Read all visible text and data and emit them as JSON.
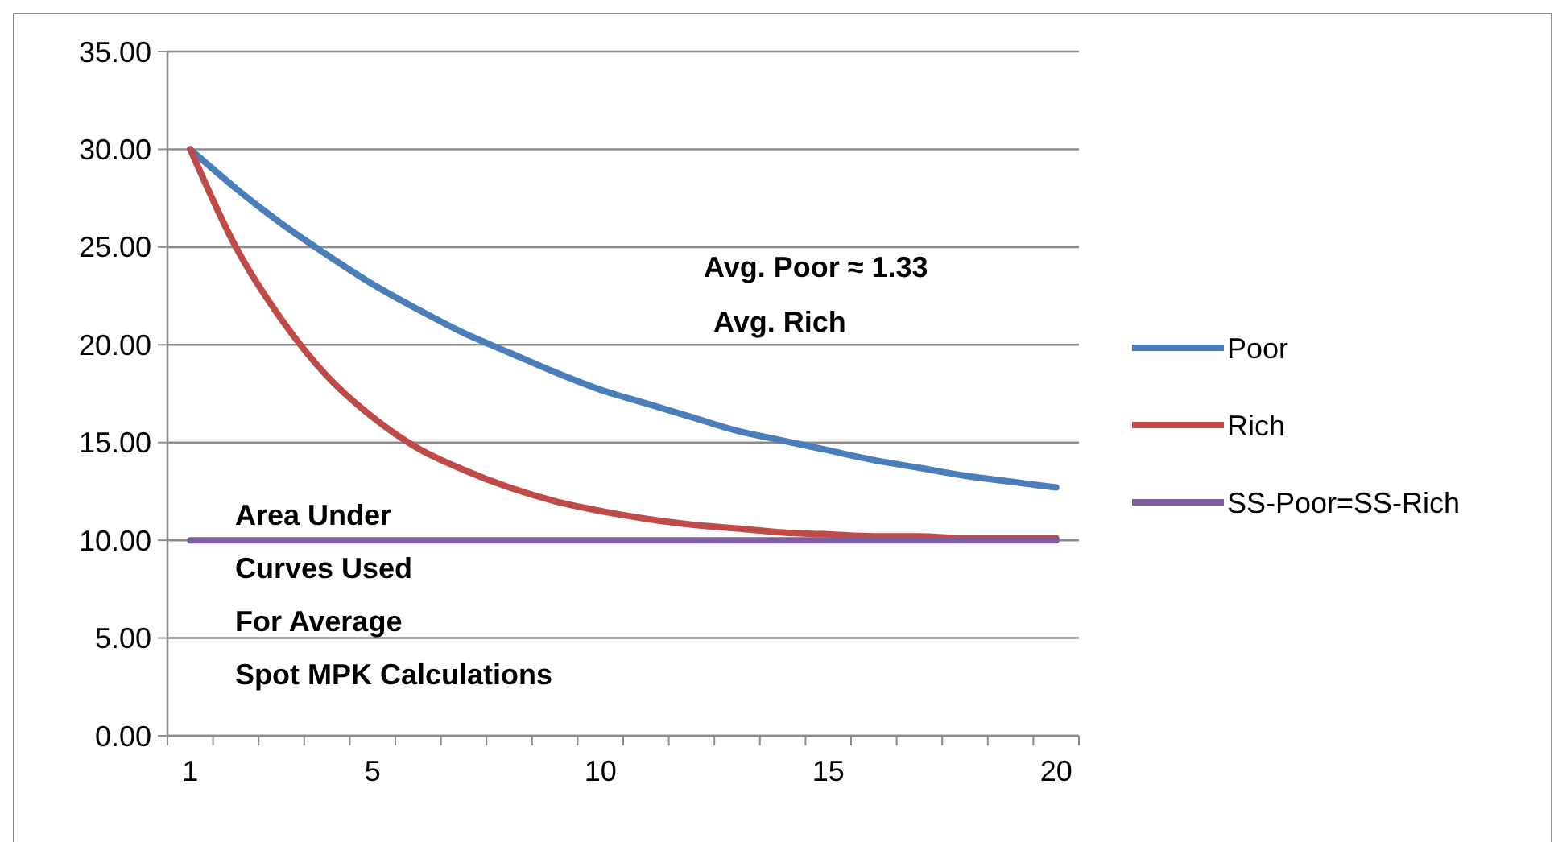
{
  "chart_data": {
    "type": "line",
    "x": [
      1,
      2,
      3,
      4,
      5,
      6,
      7,
      8,
      9,
      10,
      11,
      12,
      13,
      14,
      15,
      16,
      17,
      18,
      19,
      20
    ],
    "xlim": [
      0.5,
      20.5
    ],
    "xticks": [
      {
        "value": 0.5,
        "label": null
      },
      1,
      {
        "value": 1.5,
        "label": null
      },
      {
        "value": 2.5,
        "label": null
      },
      {
        "value": 3.5,
        "label": null
      },
      {
        "value": 4.5,
        "label": null
      },
      5,
      {
        "value": 5.5,
        "label": null
      },
      {
        "value": 6.5,
        "label": null
      },
      {
        "value": 7.5,
        "label": null
      },
      {
        "value": 8.5,
        "label": null
      },
      {
        "value": 9.5,
        "label": null
      },
      10,
      {
        "value": 10.5,
        "label": null
      },
      {
        "value": 11.5,
        "label": null
      },
      {
        "value": 12.5,
        "label": null
      },
      {
        "value": 13.5,
        "label": null
      },
      {
        "value": 14.5,
        "label": null
      },
      15,
      {
        "value": 15.5,
        "label": null
      },
      {
        "value": 16.5,
        "label": null
      },
      {
        "value": 17.5,
        "label": null
      },
      {
        "value": 18.5,
        "label": null
      },
      {
        "value": 19.5,
        "label": null
      },
      20,
      {
        "value": 20.5,
        "label": null
      }
    ],
    "series": [
      {
        "name": "Poor",
        "color": "#4a7ebb",
        "values": [
          30,
          28.0,
          26.2,
          24.6,
          23.1,
          21.8,
          20.6,
          19.6,
          18.6,
          17.7,
          17.0,
          16.3,
          15.6,
          15.1,
          14.6,
          14.1,
          13.7,
          13.3,
          13.0,
          12.7
        ]
      },
      {
        "name": "Rich",
        "color": "#be4b48",
        "values": [
          30,
          25.0,
          21.3,
          18.4,
          16.3,
          14.7,
          13.6,
          12.7,
          12.0,
          11.5,
          11.1,
          10.8,
          10.6,
          10.4,
          10.3,
          10.2,
          10.2,
          10.1,
          10.1,
          10.1
        ]
      },
      {
        "name": "SS-Poor=SS-Rich",
        "color": "#7d5fa0",
        "values": [
          10,
          10,
          10,
          10,
          10,
          10,
          10,
          10,
          10,
          10,
          10,
          10,
          10,
          10,
          10,
          10,
          10,
          10,
          10,
          10
        ]
      }
    ],
    "ylim": [
      0,
      35
    ],
    "yticks": [
      {
        "value": 0,
        "label": "0.00"
      },
      {
        "value": 5,
        "label": "5.00"
      },
      {
        "value": 10,
        "label": "10.00"
      },
      {
        "value": 15,
        "label": "15.00"
      },
      {
        "value": 20,
        "label": "20.00"
      },
      {
        "value": 25,
        "label": "25.00"
      },
      {
        "value": 30,
        "label": "30.00"
      },
      {
        "value": 35,
        "label": "35.00"
      }
    ],
    "grid": "y",
    "legend": "right",
    "marker": "none",
    "line_style": "solid",
    "annotations": [
      "Avg. Poor ≈ 1.33",
      "Avg. Rich",
      "Area Under Curves Used For Average Spot MPK Calculations"
    ]
  }
}
